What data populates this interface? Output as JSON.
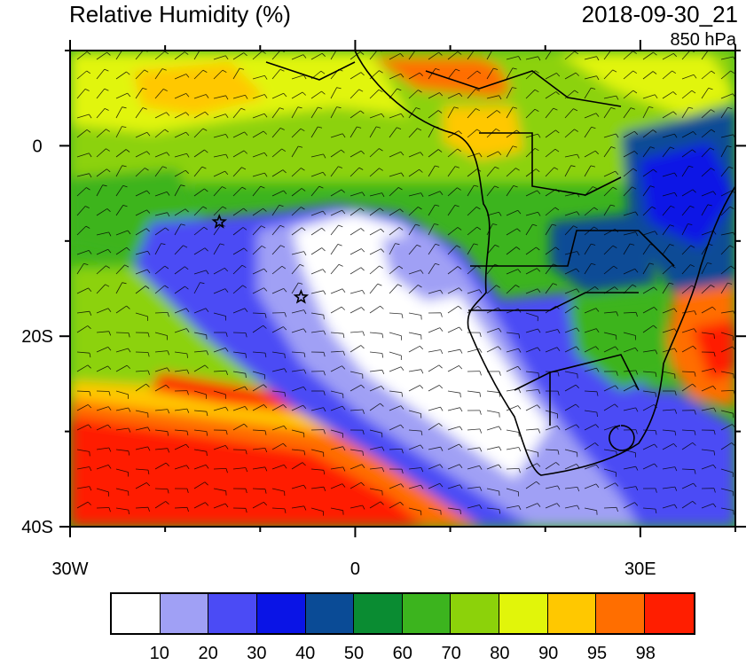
{
  "header": {
    "title": "Relative Humidity (%)",
    "valid_time": "2018-09-30_21",
    "level": "850 hPa"
  },
  "map": {
    "region": "South Atlantic / Southern Africa",
    "projection": "lat-lon",
    "lon_range": [
      -30,
      40
    ],
    "lat_range": [
      -40,
      10
    ],
    "x_ticks": [
      {
        "value": -30,
        "label": "30W"
      },
      {
        "value": 0,
        "label": "0"
      },
      {
        "value": 30,
        "label": "30E"
      }
    ],
    "y_ticks": [
      {
        "value": 0,
        "label": "0"
      },
      {
        "value": -20,
        "label": "20S"
      },
      {
        "value": -40,
        "label": "40S"
      }
    ],
    "markers": [
      {
        "symbol": "star",
        "lon": -14.3,
        "lat": -8.0
      },
      {
        "symbol": "star",
        "lon": -5.7,
        "lat": -15.9
      }
    ],
    "overlay": "wind barbs"
  },
  "colorbar": {
    "colors": [
      "#ffffff",
      "#a0a0f5",
      "#4b4bf5",
      "#0a14e6",
      "#0a4b96",
      "#0a8c32",
      "#3cb41e",
      "#8cd20a",
      "#e1f50a",
      "#ffc800",
      "#ff6e00",
      "#ff1e00"
    ],
    "labels": [
      "10",
      "20",
      "30",
      "40",
      "50",
      "60",
      "70",
      "80",
      "90",
      "95",
      "98"
    ]
  }
}
